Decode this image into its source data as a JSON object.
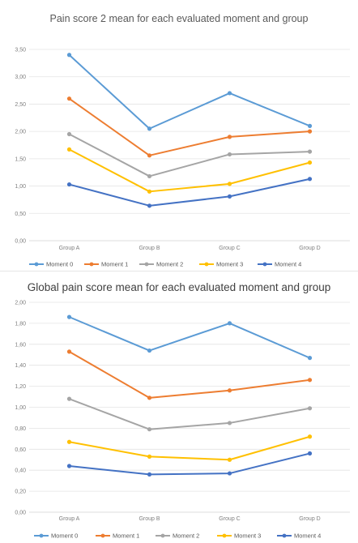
{
  "chart_data": [
    {
      "type": "line",
      "title": "Pain score 2 mean for each evaluated moment and group",
      "categories": [
        "Group A",
        "Group B",
        "Group C",
        "Group D"
      ],
      "ylim": [
        0,
        3.5
      ],
      "yticks": [
        "0,00",
        "0,50",
        "1,00",
        "1,50",
        "2,00",
        "2,50",
        "3,00",
        "3,50"
      ],
      "grid": true,
      "legend_position": "bottom",
      "series": [
        {
          "name": "Moment  0",
          "color": "#5b9bd5",
          "values": [
            3.4,
            2.05,
            2.7,
            2.1
          ]
        },
        {
          "name": "Moment  1",
          "color": "#ed7d31",
          "values": [
            2.6,
            1.56,
            1.9,
            2.0
          ]
        },
        {
          "name": "Moment  2",
          "color": "#a5a5a5",
          "values": [
            1.95,
            1.18,
            1.58,
            1.63
          ]
        },
        {
          "name": "Moment  3",
          "color": "#ffc000",
          "values": [
            1.67,
            0.9,
            1.04,
            1.43
          ]
        },
        {
          "name": "Moment  4",
          "color": "#4472c4",
          "values": [
            1.03,
            0.64,
            0.81,
            1.13
          ]
        }
      ]
    },
    {
      "type": "line",
      "title": "Global pain score mean for each evaluated moment and group",
      "categories": [
        "Group A",
        "Group B",
        "Group C",
        "Group D"
      ],
      "ylim": [
        0,
        2.0
      ],
      "yticks": [
        "0,00",
        "0,20",
        "0,40",
        "0,60",
        "0,80",
        "1,00",
        "1,20",
        "1,40",
        "1,60",
        "1,80",
        "2,00"
      ],
      "grid": true,
      "legend_position": "bottom",
      "series": [
        {
          "name": "Moment  0",
          "color": "#5b9bd5",
          "values": [
            1.86,
            1.54,
            1.8,
            1.47
          ]
        },
        {
          "name": "Moment  1",
          "color": "#ed7d31",
          "values": [
            1.53,
            1.09,
            1.16,
            1.26
          ]
        },
        {
          "name": "Moment  2",
          "color": "#a5a5a5",
          "values": [
            1.08,
            0.79,
            0.85,
            0.99
          ]
        },
        {
          "name": "Moment  3",
          "color": "#ffc000",
          "values": [
            0.67,
            0.53,
            0.5,
            0.72
          ]
        },
        {
          "name": "Moment  4",
          "color": "#4472c4",
          "values": [
            0.44,
            0.36,
            0.37,
            0.56
          ]
        }
      ]
    }
  ]
}
